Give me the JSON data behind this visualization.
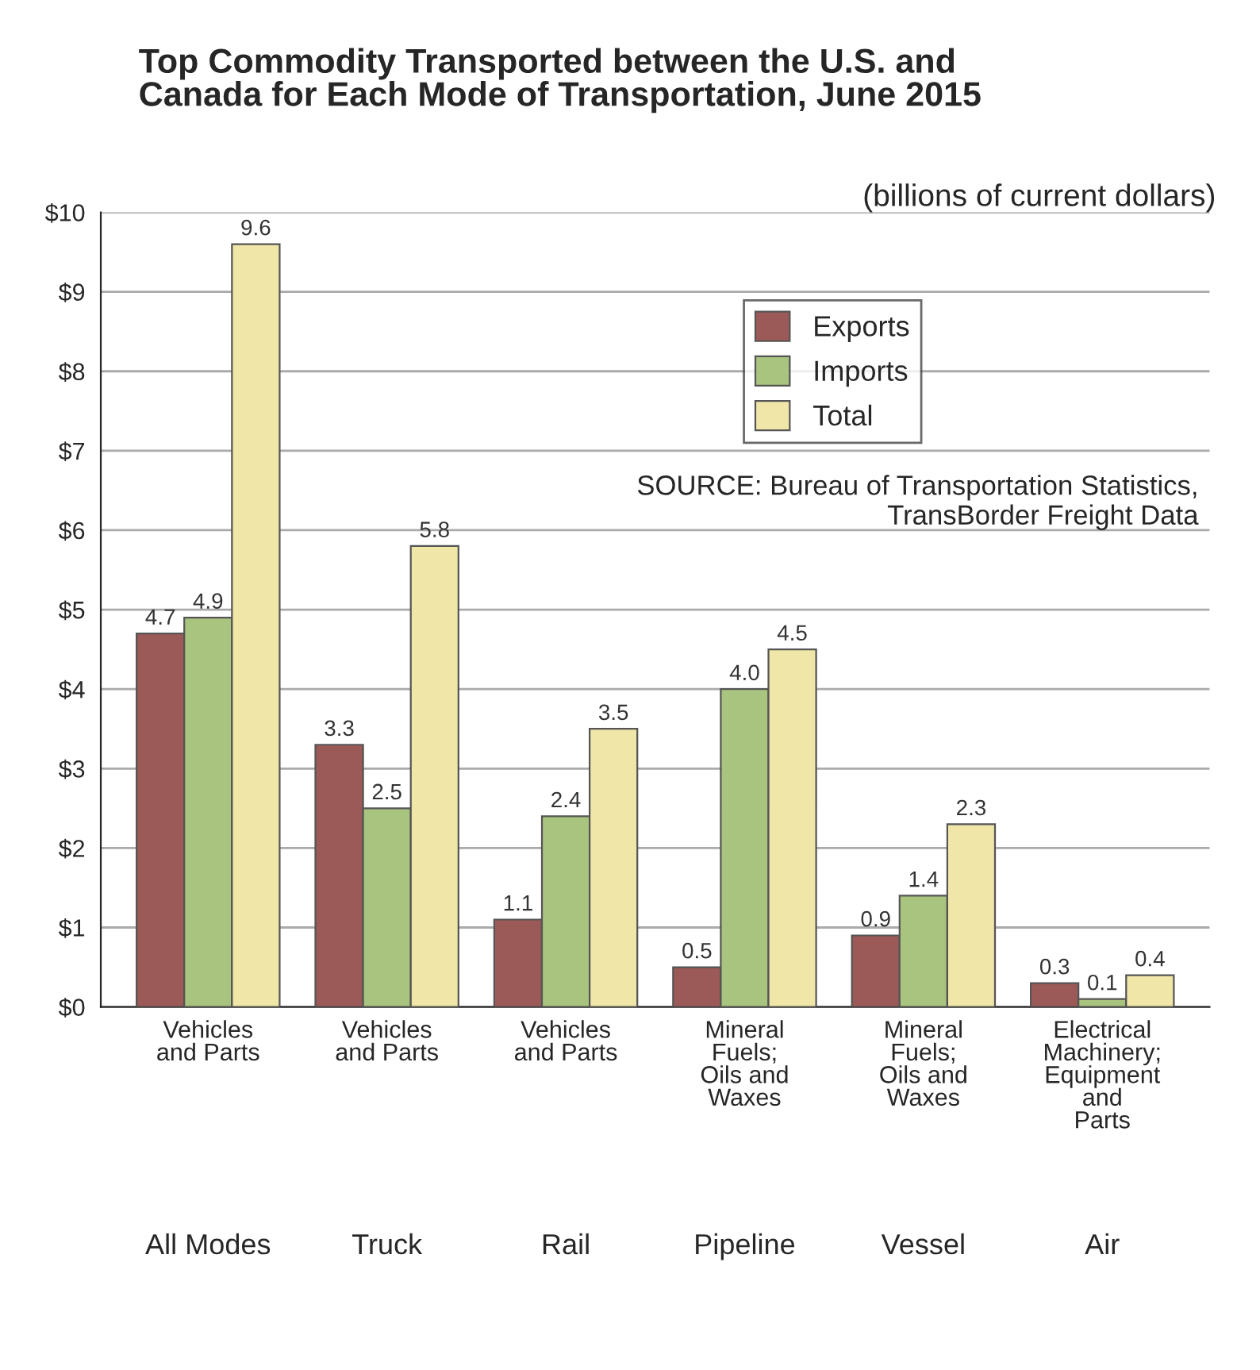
{
  "chart_data": {
    "type": "bar",
    "title": "Top Commodity Transported between the U.S. and\nCanada for Each Mode of Transportation, June 2015",
    "subtitle": "(billions of current dollars)",
    "categories": [
      "Vehicles\nand Parts",
      "Vehicles\nand Parts",
      "Vehicles\nand Parts",
      "Mineral\nFuels;\nOils and\nWaxes",
      "Mineral\nFuels;\nOils and\nWaxes",
      "Electrical\nMachinery;\nEquipment\nand\nParts"
    ],
    "series": [
      {
        "name": "Exports",
        "color": "#9b5a57",
        "values": [
          4.7,
          3.3,
          1.1,
          0.5,
          0.9,
          0.3
        ],
        "value_labels": [
          "4.7",
          "3.3",
          "1.1",
          "0.5",
          "0.9",
          "0.3"
        ]
      },
      {
        "name": "Imports",
        "color": "#a9c47f",
        "values": [
          4.9,
          2.5,
          2.4,
          4.0,
          1.4,
          0.1
        ],
        "value_labels": [
          "4.9",
          "2.5",
          "2.4",
          "4.0",
          "1.4",
          "0.1"
        ]
      },
      {
        "name": "Total",
        "color": "#efe6a8",
        "values": [
          9.6,
          5.8,
          3.5,
          4.5,
          2.3,
          0.4
        ],
        "value_labels": [
          "9.6",
          "5.8",
          "3.5",
          "4.5",
          "2.3",
          "0.4"
        ]
      }
    ],
    "ylim": [
      0,
      10
    ],
    "yticks": [
      {
        "value": 0,
        "label": "$0"
      },
      {
        "value": 1,
        "label": "$1"
      },
      {
        "value": 2,
        "label": "$2"
      },
      {
        "value": 3,
        "label": "$3"
      },
      {
        "value": 4,
        "label": "$4"
      },
      {
        "value": 5,
        "label": "$5"
      },
      {
        "value": 6,
        "label": "$6"
      },
      {
        "value": 7,
        "label": "$7"
      },
      {
        "value": 8,
        "label": "$8"
      },
      {
        "value": 9,
        "label": "$9"
      },
      {
        "value": 10,
        "label": "$10"
      }
    ],
    "annotations": [
      "All Modes",
      "Truck",
      "Rail",
      "Pipeline",
      "Vessel",
      "Air",
      "SOURCE: Bureau of Transportation Statistics,\nTransBorder Freight Data"
    ],
    "grid": "y",
    "legend": "top right"
  }
}
